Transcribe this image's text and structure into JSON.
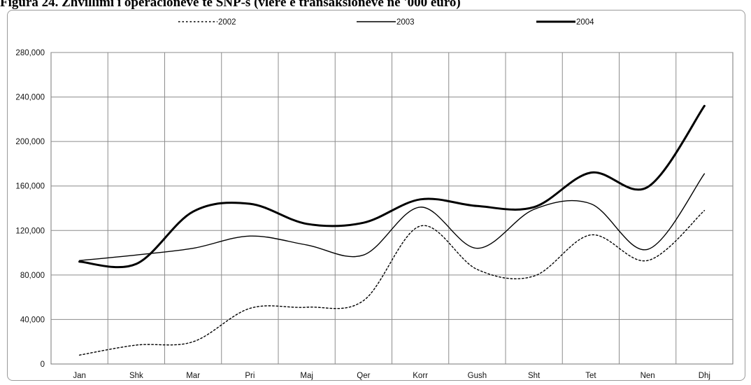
{
  "title": "Figura 24. Zhvillimi i operacioneve të SNP-s (vlerë e transaksioneve në '000 euro)",
  "chart_data": {
    "type": "line",
    "title": "Figura 24. Zhvillimi i operacioneve të SNP-s (vlerë e transaksioneve në '000 euro)",
    "xlabel": "",
    "ylabel": "",
    "categories": [
      "Jan",
      "Shk",
      "Mar",
      "Pri",
      "Maj",
      "Qer",
      "Korr",
      "Gush",
      "Sht",
      "Tet",
      "Nen",
      "Dhj"
    ],
    "ylim": [
      0,
      280000
    ],
    "yticks": [
      0,
      40000,
      80000,
      120000,
      160000,
      200000,
      240000,
      280000
    ],
    "ytick_labels": [
      "0",
      "40,000",
      "80,000",
      "120,000",
      "160,000",
      "200,000",
      "240,000",
      "280,000"
    ],
    "grid": true,
    "legend_position": "top",
    "series": [
      {
        "name": "2002",
        "style": "dotted",
        "color": "#000000",
        "values": [
          8000,
          17000,
          20000,
          50000,
          51000,
          57000,
          124000,
          85000,
          79000,
          116000,
          93000,
          138000
        ]
      },
      {
        "name": "2003",
        "style": "solid-thin",
        "color": "#000000",
        "values": [
          93000,
          98000,
          104000,
          115000,
          107000,
          98000,
          141000,
          104000,
          139000,
          144000,
          103000,
          171000
        ]
      },
      {
        "name": "2004",
        "style": "solid-thick",
        "color": "#000000",
        "values": [
          92000,
          90000,
          137000,
          144000,
          126000,
          127000,
          148000,
          142000,
          141000,
          172000,
          159000,
          232000
        ]
      }
    ]
  }
}
